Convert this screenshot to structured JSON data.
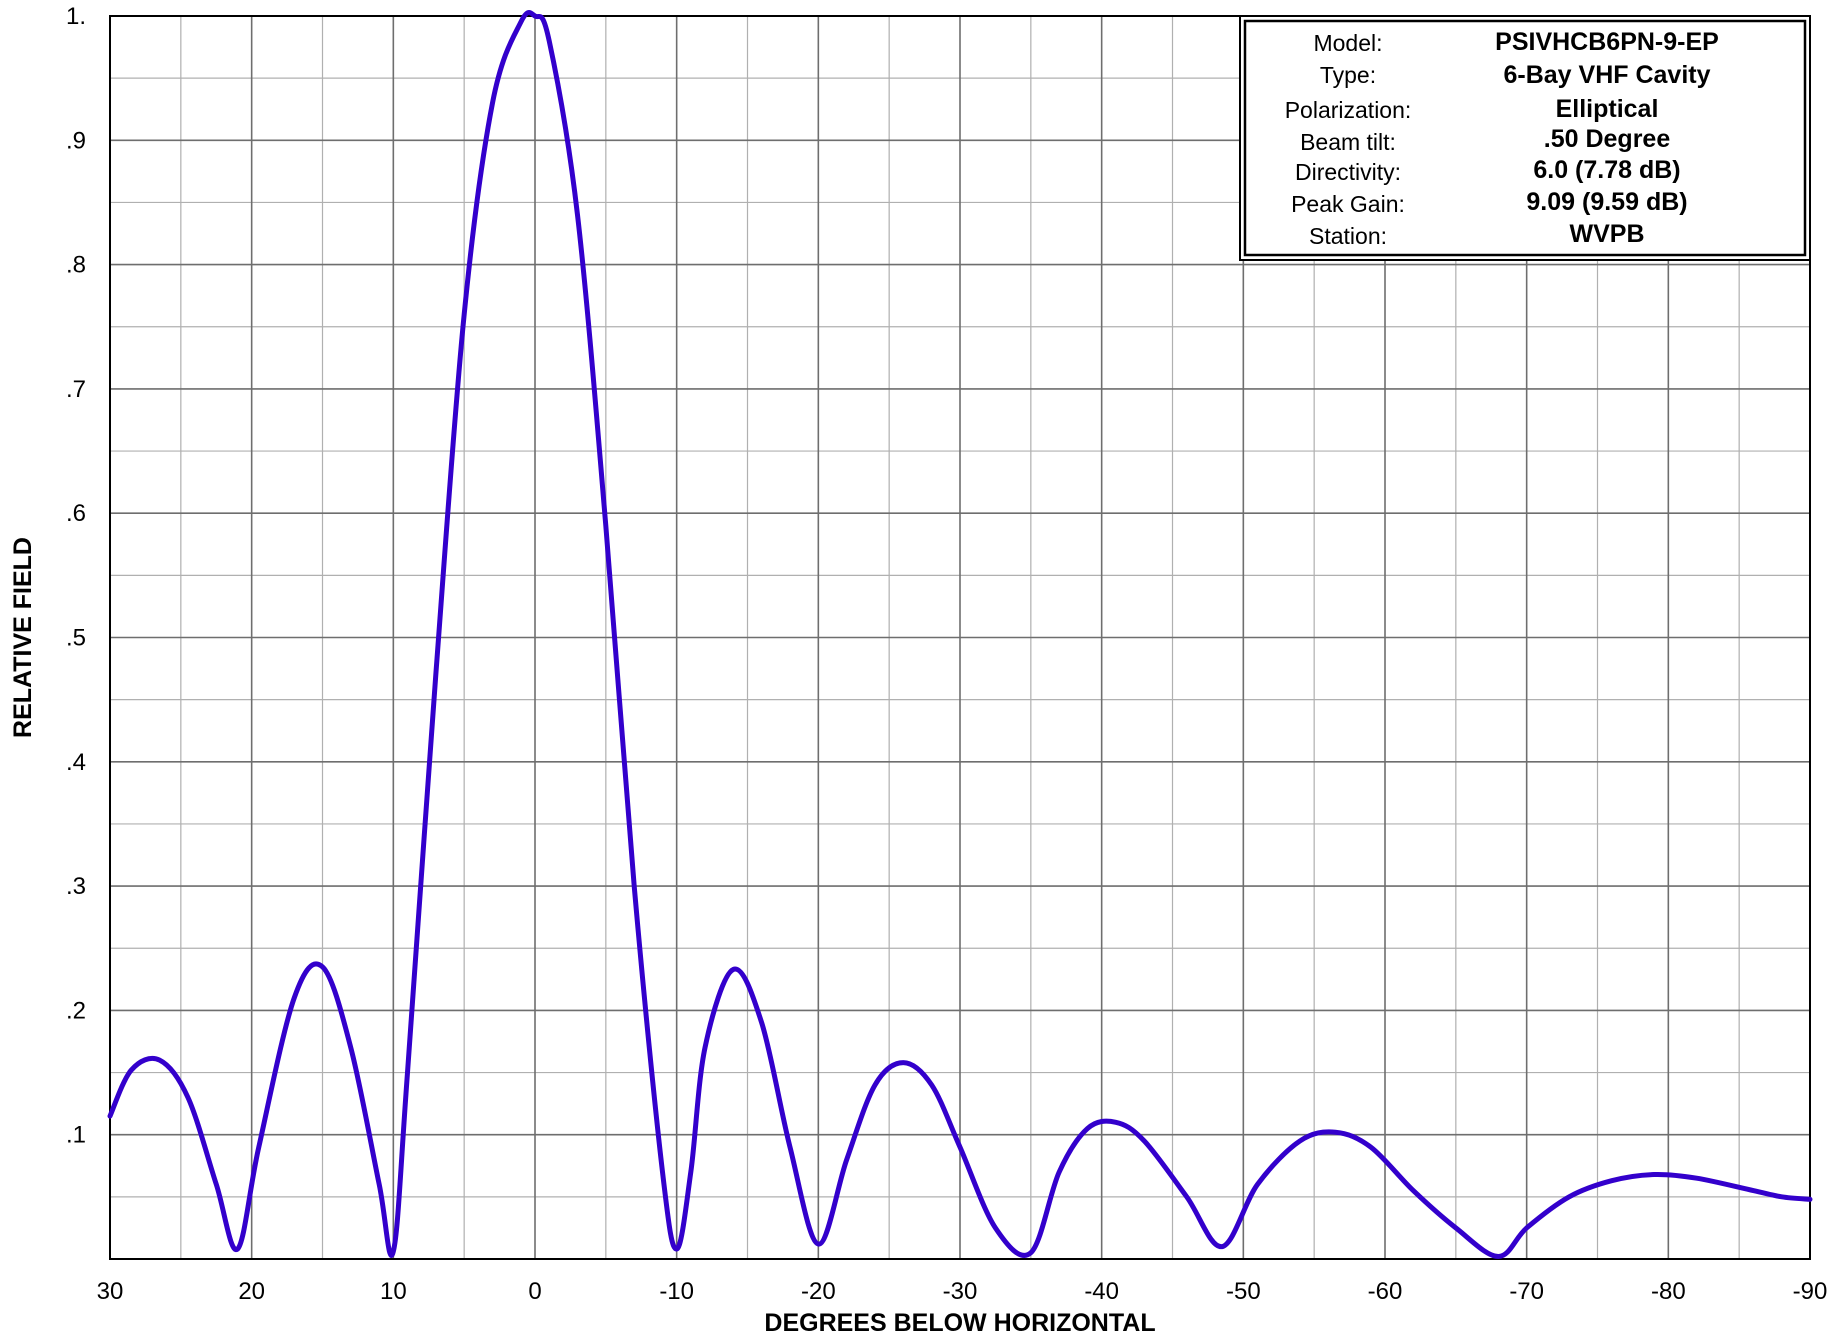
{
  "chart_data": {
    "type": "line",
    "title": "",
    "xlabel": "DEGREES BELOW HORIZONTAL",
    "ylabel": "RELATIVE  FIELD",
    "xlim": [
      30,
      -90
    ],
    "ylim": [
      0,
      1
    ],
    "x_ticks": [
      30,
      20,
      10,
      0,
      -10,
      -20,
      -30,
      -40,
      -50,
      -60,
      -70,
      -80,
      -90
    ],
    "x_tick_labels": [
      "30",
      "20",
      "10",
      "0",
      "-10",
      "-20",
      "-30",
      "-40",
      "-50",
      "-60",
      "-70",
      "-80",
      "-90"
    ],
    "y_ticks": [
      0.1,
      0.2,
      0.3,
      0.4,
      0.5,
      0.6,
      0.7,
      0.8,
      0.9,
      1.0
    ],
    "y_tick_labels": [
      ".1",
      ".2",
      ".3",
      ".4",
      ".5",
      ".6",
      ".7",
      ".8",
      ".9",
      "1."
    ],
    "grid": true,
    "line_color": "#3300cc",
    "series": [
      {
        "x": [
          30,
          28.5,
          26.5,
          24.5,
          22.5,
          21,
          19.5,
          17,
          15,
          13,
          11,
          10,
          9,
          7,
          5,
          3,
          1,
          0,
          -1,
          -3,
          -5,
          -7,
          -9,
          -10,
          -11,
          -12,
          -14,
          -16,
          -18,
          -20,
          -22,
          -24,
          -26,
          -28,
          -30,
          -32.5,
          -35,
          -37,
          -39,
          -41,
          -43,
          -46,
          -48.5,
          -51,
          -54,
          -56.5,
          -59,
          -62,
          -65,
          -68,
          -70,
          -73,
          -76,
          -79,
          -82,
          -86,
          -88,
          -90
        ],
        "y": [
          0.115,
          0.152,
          0.16,
          0.13,
          0.06,
          0.008,
          0.09,
          0.21,
          0.235,
          0.17,
          0.06,
          0.006,
          0.15,
          0.47,
          0.76,
          0.93,
          0.995,
          1.0,
          0.98,
          0.84,
          0.59,
          0.3,
          0.07,
          0.008,
          0.07,
          0.17,
          0.233,
          0.19,
          0.09,
          0.012,
          0.08,
          0.14,
          0.158,
          0.14,
          0.09,
          0.025,
          0.005,
          0.07,
          0.105,
          0.11,
          0.095,
          0.05,
          0.01,
          0.06,
          0.095,
          0.102,
          0.09,
          0.055,
          0.025,
          0.002,
          0.025,
          0.05,
          0.063,
          0.068,
          0.065,
          0.055,
          0.05,
          0.048
        ]
      }
    ],
    "info_box": {
      "position": "top-right",
      "rows": [
        {
          "label": "Model:",
          "value": "PSIVHCB6PN-9-EP"
        },
        {
          "label": "Type:",
          "value": "6-Bay VHF Cavity"
        },
        {
          "label": "Polarization:",
          "value": "Elliptical"
        },
        {
          "label": "Beam tilt:",
          "value": ".50 Degree"
        },
        {
          "label": "Directivity:",
          "value": "6.0 (7.78 dB)"
        },
        {
          "label": "Peak Gain:",
          "value": "9.09 (9.59 dB)"
        },
        {
          "label": "Station:",
          "value": "WVPB"
        }
      ]
    }
  }
}
